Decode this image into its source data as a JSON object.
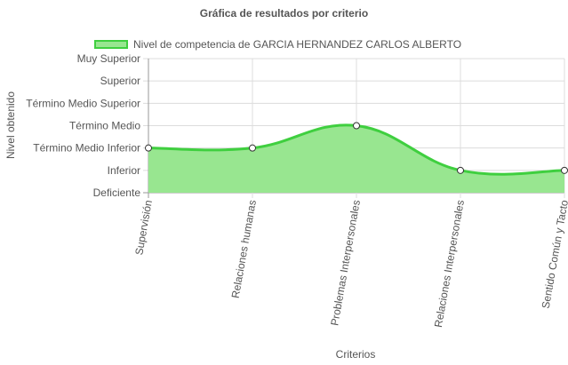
{
  "chart_data": {
    "type": "area",
    "title": "Gráfica de resultados por criterio",
    "xlabel": "Criterios",
    "ylabel": "Nivel obtenido",
    "categories": [
      "Supervisión",
      "Relaciones humanas",
      "Problemas Interpersonales",
      "Relaciones Interpersonales",
      "Sentido Común y Tacto"
    ],
    "y_levels": [
      "Deficiente",
      "Inferior",
      "Término Medio Inferior",
      "Término Medio",
      "Término Medio Superior",
      "Superior",
      "Muy Superior"
    ],
    "ylim": [
      0,
      6
    ],
    "grid": true,
    "legend_position": "top",
    "series": [
      {
        "name": "Nivel de competencia de GARCIA HERNANDEZ CARLOS ALBERTO",
        "values": [
          2,
          2,
          3,
          1,
          1
        ],
        "fill_color": "#98e690",
        "line_color": "#3fcf3f"
      }
    ]
  }
}
